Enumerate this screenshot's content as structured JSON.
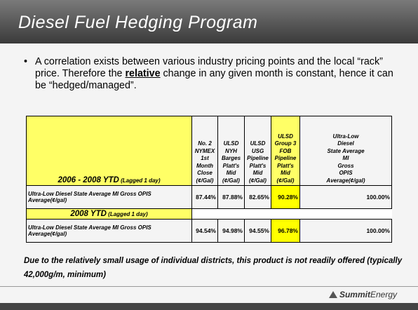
{
  "header": {
    "title": "Diesel Fuel Hedging Program"
  },
  "bullet": {
    "parts": [
      "A correlation exists between various industry pricing points and the local “rack” price. Therefore the ",
      "relative",
      " change in any given month is constant, hence it can be “hedged/managed”."
    ]
  },
  "table": {
    "columns": [
      [
        "No. 2",
        "NYMEX",
        "1st",
        "Month",
        "Close",
        "(¢/Gal)"
      ],
      [
        "ULSD",
        "NYH",
        "Barges",
        "Platt's",
        "Mid",
        "(¢/Gal)"
      ],
      [
        "ULSD",
        "USG",
        "Pipeline",
        "Platt's",
        "Mid",
        "(¢/Gal)"
      ],
      [
        "ULSD",
        "Group 3",
        "FOB",
        "Pipeline",
        "Platt's",
        "Mid",
        "(¢/Gal)"
      ],
      [
        "Ultra-Low",
        "Diesel",
        "State Average",
        "MI",
        "Gross",
        "OPIS",
        "Average(¢/gal)"
      ]
    ],
    "sections": [
      {
        "heading": "2006 - 2008 YTD",
        "note": "(Lagged 1 day)",
        "label": "Ultra-Low Diesel State Average MI Gross OPIS Average(¢/gal)",
        "values": [
          "87.44%",
          "87.88%",
          "82.65%",
          "90.28%",
          "100.00%"
        ]
      },
      {
        "heading": "2008 YTD",
        "note": "(Lagged 1 day)",
        "label": "Ultra-Low Diesel State Average MI Gross OPIS Average(¢/gal)",
        "values": [
          "94.54%",
          "94.98%",
          "94.55%",
          "96.78%",
          "100.00%"
        ]
      }
    ]
  },
  "footnote": "Due to the relatively small usage of individual districts, this product is not readily offered (typically 42,000g/m, minimum)",
  "logo": {
    "bold": "Summit",
    "light": "Energy"
  }
}
